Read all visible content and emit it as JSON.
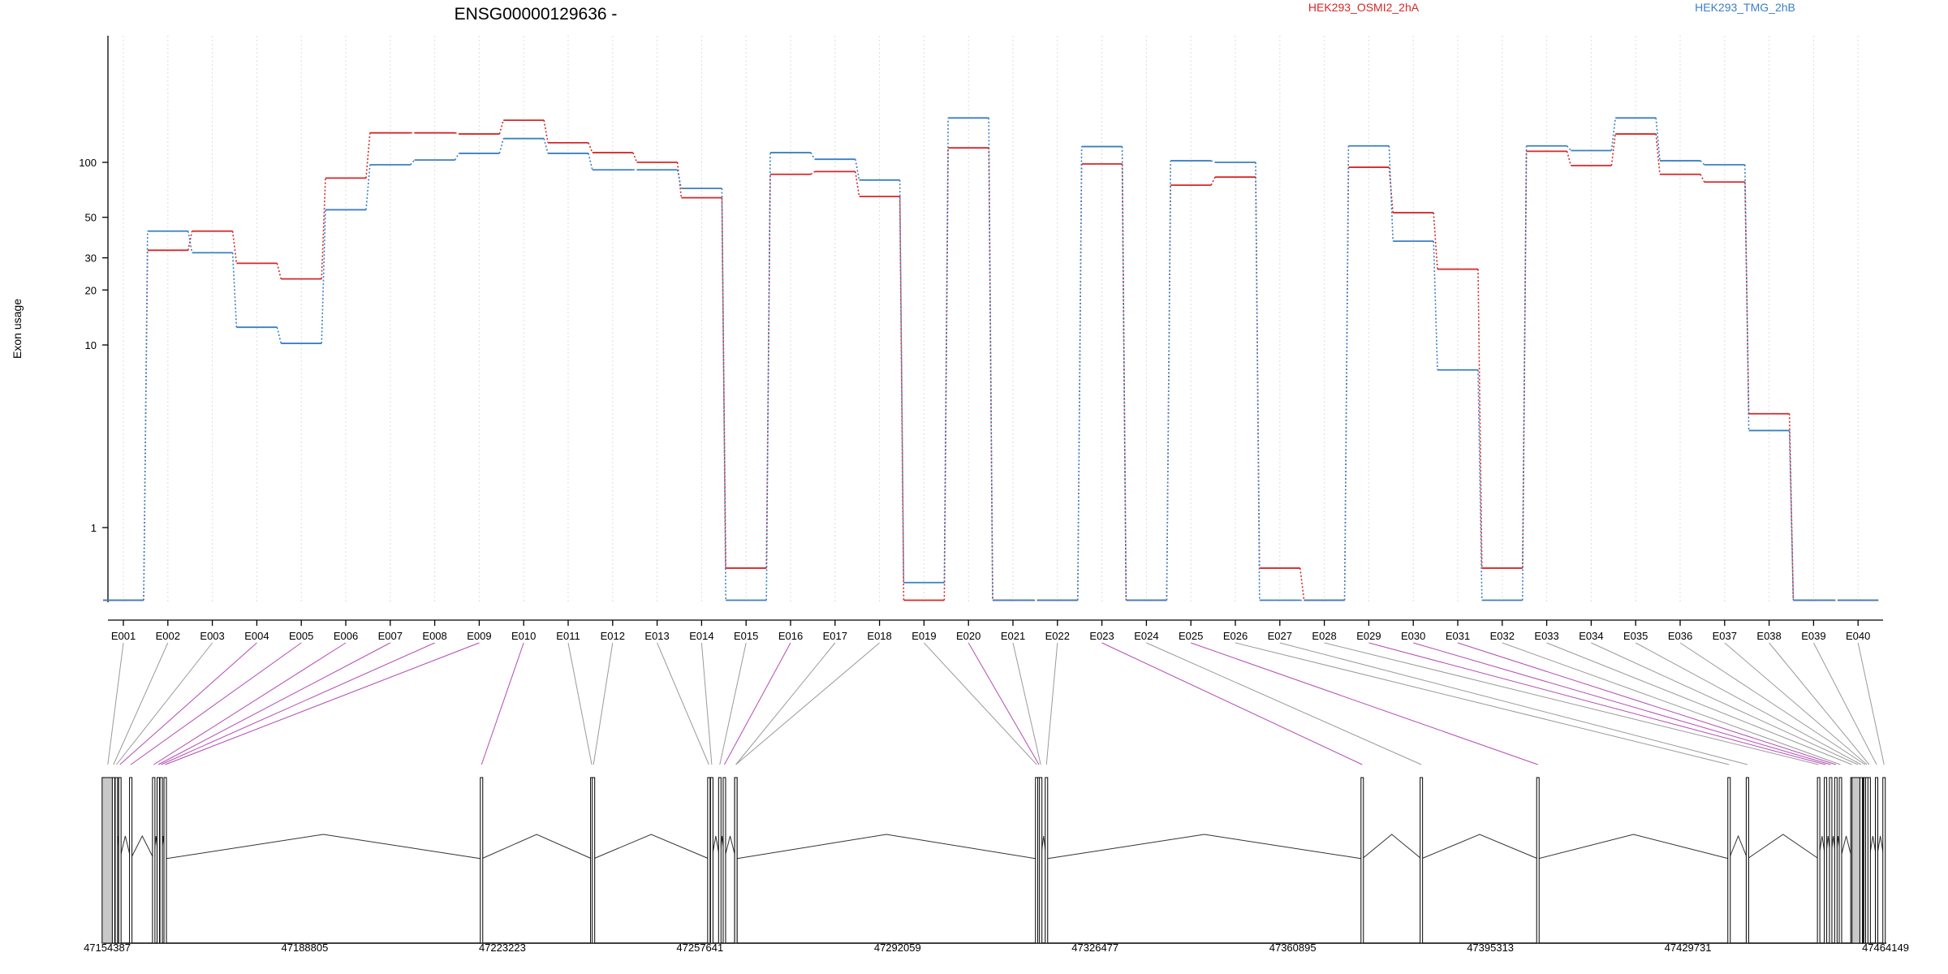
{
  "chart_data": {
    "type": "line",
    "title": "ENSG00000129636 -",
    "ylabel": "Exon usage",
    "yscale": "log",
    "ylim": [
      0.4,
      200
    ],
    "yticks": [
      1,
      10,
      20,
      30,
      50,
      100
    ],
    "grid": "vertical dotted lines at each exon",
    "legend_placement": "top-right",
    "categories": [
      "E001",
      "E002",
      "E003",
      "E004",
      "E005",
      "E006",
      "E007",
      "E008",
      "E009",
      "E010",
      "E011",
      "E012",
      "E013",
      "E014",
      "E015",
      "E016",
      "E017",
      "E018",
      "E019",
      "E020",
      "E021",
      "E022",
      "E023",
      "E024",
      "E025",
      "E026",
      "E027",
      "E028",
      "E029",
      "E030",
      "E031",
      "E032",
      "E033",
      "E034",
      "E035",
      "E036",
      "E037",
      "E038",
      "E039",
      "E040"
    ],
    "series": [
      {
        "name": "HEK293_OSMI2_2hA",
        "color": "#d62728",
        "values": [
          0.4,
          33,
          42,
          28,
          23,
          82,
          145,
          145,
          143,
          170,
          128,
          113,
          100,
          64,
          0.6,
          86,
          89,
          65,
          0.4,
          120,
          0.4,
          0.4,
          98,
          0.4,
          75,
          83,
          0.6,
          0.4,
          94,
          53,
          26,
          0.6,
          115,
          96,
          143,
          86,
          78,
          4.2,
          0.4,
          0.4
        ]
      },
      {
        "name": "HEK293_TMG_2hB",
        "color": "#3a7fc4",
        "values": [
          0.4,
          42,
          32,
          12.5,
          10.2,
          55,
          97,
          103,
          112,
          135,
          112,
          91,
          91,
          72,
          0.4,
          113,
          104,
          80,
          0.5,
          175,
          0.4,
          0.4,
          122,
          0.4,
          102,
          100,
          0.4,
          0.4,
          123,
          37,
          7.3,
          0.4,
          123,
          116,
          175,
          102,
          97,
          3.4,
          0.4,
          0.4
        ]
      }
    ],
    "gene_model": {
      "coordinate_labels": [
        "47154387",
        "47188805",
        "47223223",
        "47257641",
        "47292059",
        "47326477",
        "47360895",
        "47395313",
        "47429731",
        "47464149"
      ],
      "exon_positions": [
        47154500,
        47155500,
        47156000,
        47156600,
        47158500,
        47162500,
        47163300,
        47163800,
        47164500,
        47219600,
        47238800,
        47239100,
        47259200,
        47259700,
        47261100,
        47261900,
        47263900,
        47263900,
        47316300,
        47316700,
        47317000,
        47318000,
        47373000,
        47383300,
        47403600,
        47436900,
        47440100,
        47452500,
        47453700,
        47454600,
        47455500,
        47456300,
        47458300,
        47459300,
        47459900,
        47460600,
        47460900,
        47461300,
        47462600,
        47463900
      ],
      "highlighted_exons": [
        "E004",
        "E005",
        "E006",
        "E007",
        "E008",
        "E009",
        "E010",
        "E016",
        "E020",
        "E023",
        "E025",
        "E029",
        "E030",
        "E031"
      ],
      "shaded_exons": [
        "E001",
        "E034"
      ]
    }
  }
}
